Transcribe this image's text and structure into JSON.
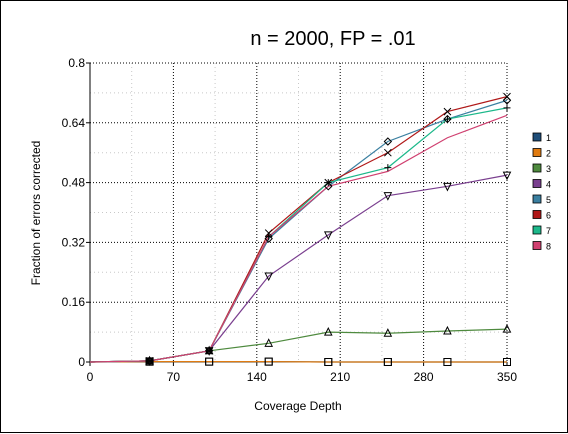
{
  "chart_data": {
    "type": "line",
    "title": "n = 2000, FP = .01",
    "xlabel": "Coverage Depth",
    "ylabel": "Fraction of errors corrected",
    "xlim": [
      0,
      350
    ],
    "ylim": [
      0,
      0.8
    ],
    "xticks": [
      "0",
      "70",
      "140",
      "210",
      "280",
      "350"
    ],
    "yticks": [
      "0",
      "0.16",
      "0.32",
      "0.48",
      "0.64",
      "0.8"
    ],
    "grid": true,
    "legend_position": "right",
    "x": [
      0,
      50,
      100,
      150,
      200,
      250,
      300,
      350
    ],
    "series": [
      {
        "name": "1",
        "color": "#1f4e79",
        "marker": "square",
        "values": [
          0,
          0.001,
          0.001,
          0.001,
          0,
          0,
          0,
          0
        ]
      },
      {
        "name": "2",
        "color": "#e07b10",
        "marker": "square",
        "values": [
          0,
          0.001,
          0.001,
          0.001,
          0,
          0,
          0,
          0
        ]
      },
      {
        "name": "3",
        "color": "#4e8a3e",
        "marker": "triangle",
        "values": [
          0,
          0.003,
          0.03,
          0.05,
          0.08,
          0.077,
          0.083,
          0.088
        ]
      },
      {
        "name": "4",
        "color": "#7a3f8f",
        "marker": "triangle-down",
        "values": [
          0,
          0.003,
          0.03,
          0.23,
          0.34,
          0.445,
          0.47,
          0.5
        ]
      },
      {
        "name": "5",
        "color": "#3a7fa0",
        "marker": "diamond",
        "values": [
          0,
          0.003,
          0.03,
          0.33,
          0.47,
          0.59,
          0.65,
          0.7
        ]
      },
      {
        "name": "6",
        "color": "#b01818",
        "marker": "x",
        "values": [
          0,
          0.003,
          0.03,
          0.345,
          0.48,
          0.56,
          0.67,
          0.71
        ]
      },
      {
        "name": "7",
        "color": "#1cb88a",
        "marker": "plus",
        "values": [
          0,
          0.003,
          0.03,
          0.335,
          0.48,
          0.52,
          0.65,
          0.68
        ]
      },
      {
        "name": "8",
        "color": "#d04070",
        "marker": "none",
        "values": [
          0,
          0.003,
          0.03,
          0.335,
          0.47,
          0.51,
          0.6,
          0.66
        ]
      }
    ]
  }
}
